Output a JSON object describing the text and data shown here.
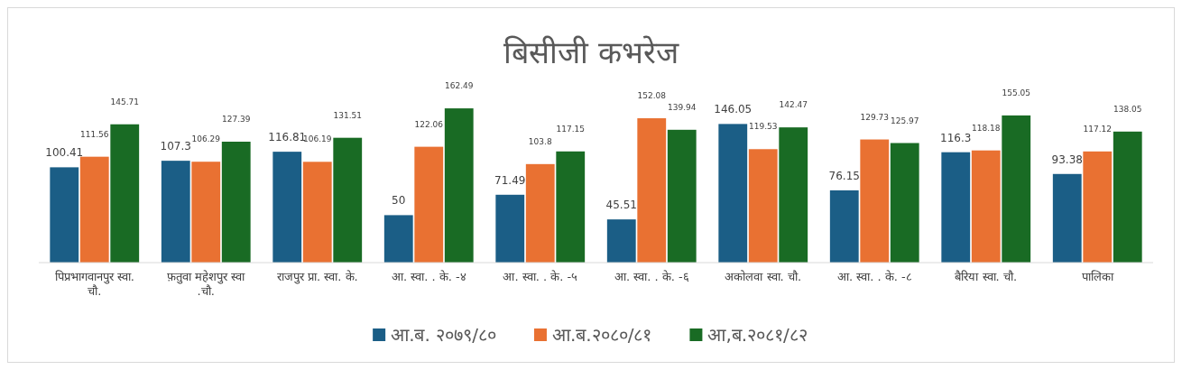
{
  "chart_data": {
    "type": "bar",
    "title": "बिसीजी कभरेज",
    "categories": [
      "पिप्रभागवानपुर स्वा. चौ.",
      "फ़तुवा महेशपुर स्वा .चौ.",
      "राजपुर प्रा. स्वा. के.",
      "आ. स्वा. . के. -४",
      "आ. स्वा. . के. -५",
      "आ. स्वा. . के. -६",
      "अकोलवा स्वा. चौ.",
      "आ. स्वा. . के. -८",
      "बैरिया स्वा. चौ.",
      "पालिका"
    ],
    "series": [
      {
        "name": "आ.ब. २०७९/८०",
        "color": "#1b5e86",
        "values": [
          100.41,
          107.3,
          116.81,
          50,
          71.49,
          45.51,
          146.05,
          76.15,
          116.3,
          93.38
        ]
      },
      {
        "name": "आ.ब.२०८०/८१",
        "color": "#e97132",
        "values": [
          111.56,
          106.29,
          106.19,
          122.06,
          103.8,
          152.08,
          119.53,
          129.73,
          118.18,
          117.12
        ]
      },
      {
        "name": "आ,ब.२०८१/८२",
        "color": "#196b24",
        "values": [
          145.71,
          127.39,
          131.51,
          162.49,
          117.15,
          139.94,
          142.47,
          125.97,
          155.05,
          138.05
        ]
      }
    ],
    "tick_labels": "x",
    "data_labels": true,
    "legend": "bottom"
  }
}
